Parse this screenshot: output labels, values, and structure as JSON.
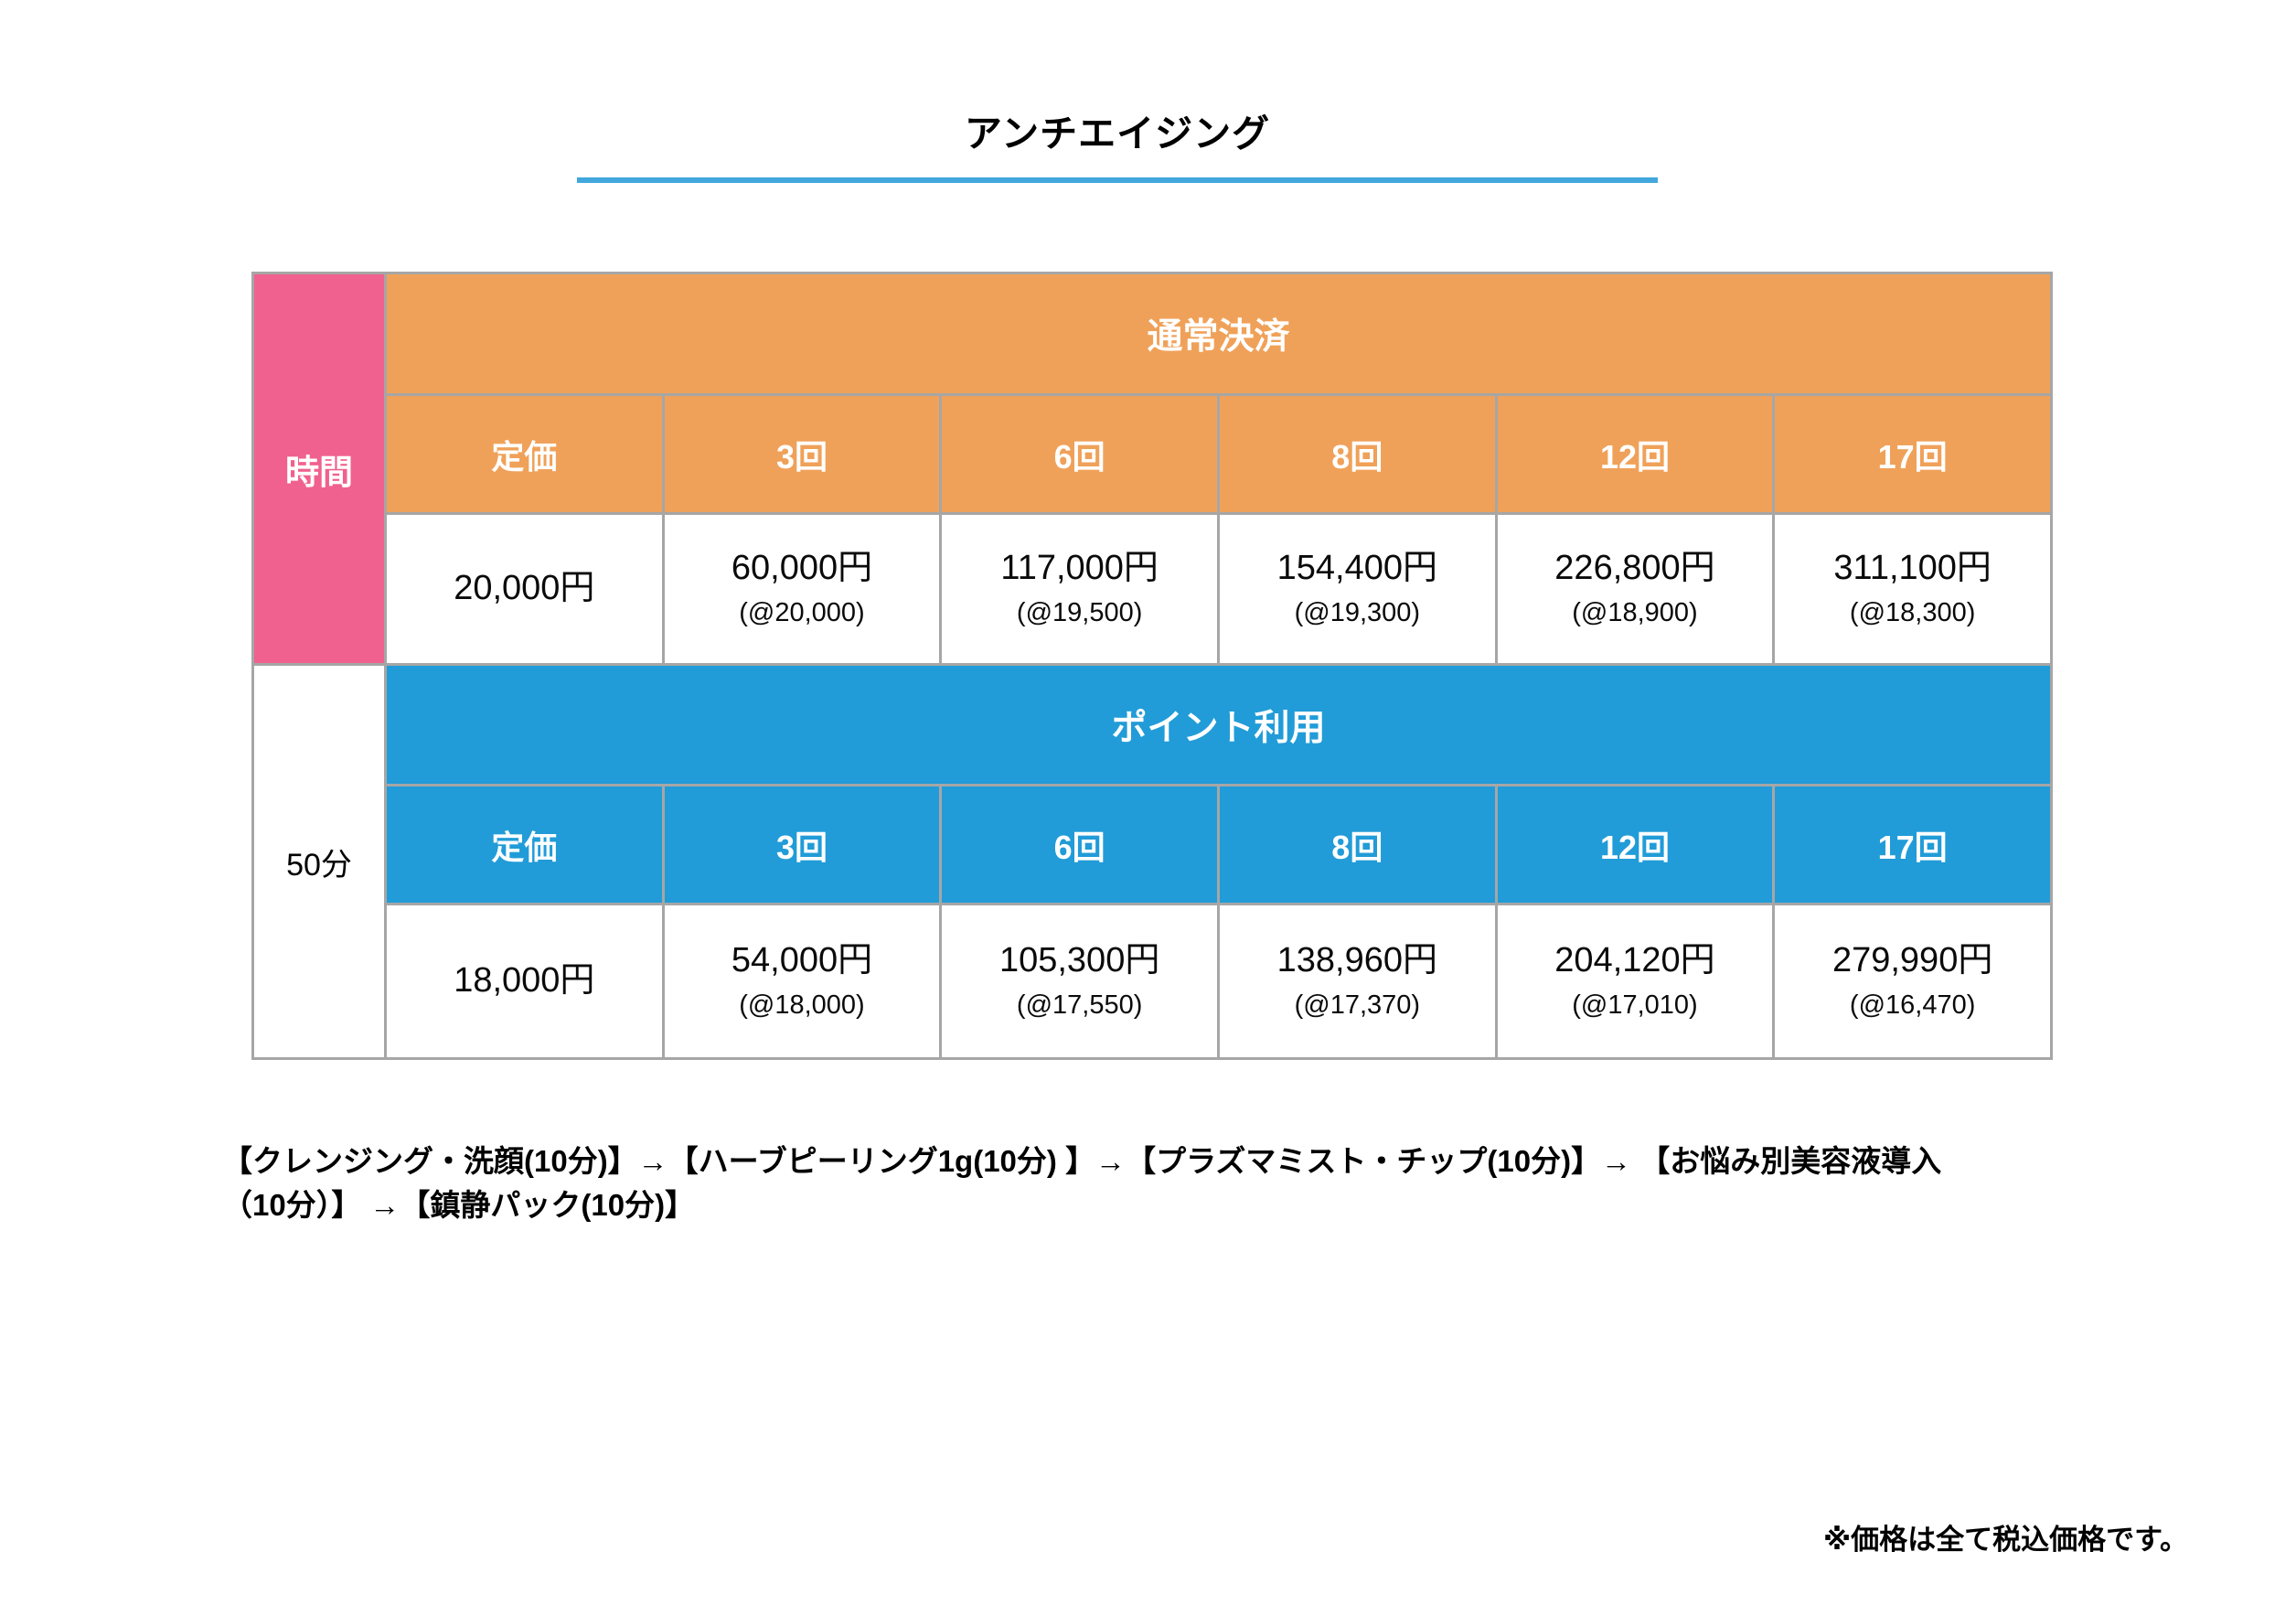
{
  "page": {
    "title": "アンチエイジング",
    "footnote": "※価格は全て税込価格です。"
  },
  "table": {
    "row_header": "時間",
    "duration": "50分",
    "sections": [
      {
        "name": "通常決済",
        "accent_color": "#F0A159",
        "columns": [
          "定価",
          "3回",
          "6回",
          "8回",
          "12回",
          "17回"
        ],
        "prices": [
          {
            "main": "20,000円",
            "sub": ""
          },
          {
            "main": "60,000円",
            "sub": "(@20,000)"
          },
          {
            "main": "117,000円",
            "sub": "(@19,500)"
          },
          {
            "main": "154,400円",
            "sub": "(@19,300)"
          },
          {
            "main": "226,800円",
            "sub": "(@18,900)"
          },
          {
            "main": "311,100円",
            "sub": "(@18,300)"
          }
        ]
      },
      {
        "name": "ポイント利用",
        "accent_color": "#219CD8",
        "columns": [
          "定価",
          "3回",
          "6回",
          "8回",
          "12回",
          "17回"
        ],
        "prices": [
          {
            "main": "18,000円",
            "sub": ""
          },
          {
            "main": "54,000円",
            "sub": "(@18,000)"
          },
          {
            "main": "105,300円",
            "sub": "(@17,550)"
          },
          {
            "main": "138,960円",
            "sub": "(@17,370)"
          },
          {
            "main": "204,120円",
            "sub": "(@17,010)"
          },
          {
            "main": "279,990円",
            "sub": "(@16,470)"
          }
        ]
      }
    ]
  },
  "procedure": {
    "lines": [
      "【クレンジング・洗顔(10分)】→【ハーブピーリング1g(10分) 】→【プラズマミスト・チップ(10分)】→ 【お悩み別美容液導入",
      "（10分）】 →【鎮静パック(10分)】"
    ]
  },
  "colors": {
    "pink": "#F0618F",
    "orange": "#F0A159",
    "blue": "#219CD8",
    "title_underline": "#41A7DC",
    "table_border": "#A6A6A6"
  }
}
